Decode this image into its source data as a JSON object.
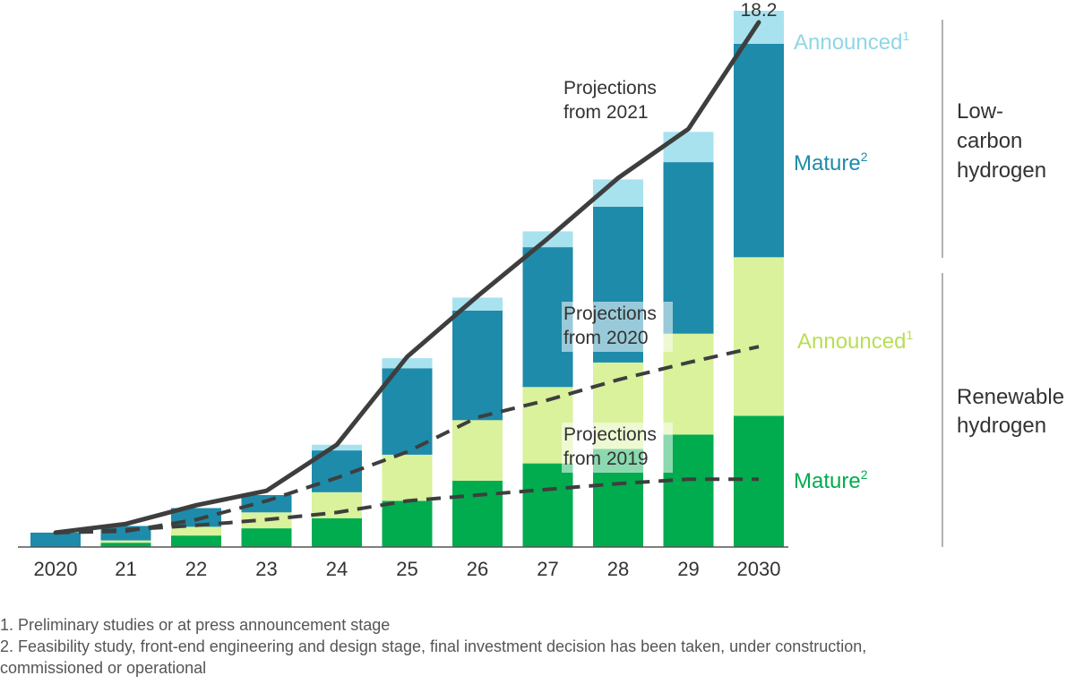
{
  "chart_data": {
    "type": "bar",
    "stacked": true,
    "title": "",
    "xlabel": "",
    "ylabel": "",
    "categories": [
      "2020",
      "21",
      "22",
      "23",
      "24",
      "25",
      "26",
      "27",
      "28",
      "29",
      "2030"
    ],
    "ylim": [
      0,
      18.6
    ],
    "series": [
      {
        "group": "Renewable hydrogen",
        "name": "Mature",
        "footnote": "2",
        "color": "#00AC4E",
        "values": [
          0.0,
          0.15,
          0.4,
          0.65,
          1.0,
          1.6,
          2.3,
          2.9,
          3.4,
          3.9,
          4.55
        ]
      },
      {
        "group": "Renewable hydrogen",
        "name": "Announced",
        "footnote": "1",
        "color": "#D9F29B",
        "values": [
          0.0,
          0.08,
          0.3,
          0.55,
          0.9,
          1.6,
          2.1,
          2.65,
          3.0,
          3.5,
          5.5
        ]
      },
      {
        "group": "Low-carbon hydrogen",
        "name": "Mature",
        "footnote": "2",
        "color": "#1E8BAA",
        "values": [
          0.5,
          0.5,
          0.65,
          0.6,
          1.45,
          3.0,
          3.8,
          4.85,
          5.4,
          5.95,
          7.4
        ]
      },
      {
        "group": "Low-carbon hydrogen",
        "name": "Announced",
        "footnote": "1",
        "color": "#A8E2EE",
        "values": [
          0.0,
          0.0,
          0.0,
          0.0,
          0.2,
          0.35,
          0.45,
          0.55,
          0.95,
          1.05,
          1.15
        ]
      }
    ],
    "projections": [
      {
        "label_line1": "Projections",
        "label_line2": "from 2021",
        "style": "solid",
        "values": [
          0.5,
          0.8,
          1.45,
          1.95,
          3.55,
          6.6,
          8.7,
          10.7,
          12.8,
          14.5,
          18.2
        ]
      },
      {
        "label_line1": "Projections",
        "label_line2": "from 2020",
        "style": "dashed",
        "values": [
          0.5,
          0.55,
          0.95,
          1.6,
          2.4,
          3.3,
          4.5,
          5.1,
          5.8,
          6.4,
          6.95
        ]
      },
      {
        "label_line1": "Projections",
        "label_line2": "from 2019",
        "style": "dashed",
        "values": [
          0.5,
          0.6,
          0.75,
          0.95,
          1.2,
          1.6,
          1.8,
          2.0,
          2.2,
          2.35,
          2.35
        ]
      }
    ],
    "peak_label": "18.2",
    "segment_labels": {
      "low_announced": "Announced",
      "low_mature": "Mature",
      "ren_announced": "Announced",
      "ren_mature": "Mature",
      "sup1": "1",
      "sup2": "2"
    },
    "group_labels": {
      "low_carbon": [
        "Low-",
        "carbon",
        "hydrogen"
      ],
      "renewable": [
        "Renewable",
        "hydrogen"
      ]
    },
    "colors": {
      "renewable_mature": "#00AC4E",
      "renewable_announced": "#D9F29B",
      "low_carbon_mature": "#1E8BAA",
      "low_carbon_announced": "#A8E2EE",
      "line": "#3E3E3E",
      "label_low": "#1E8BAA",
      "label_low_announced": "#8FD6E6",
      "label_ren_announced": "#B9DE55",
      "label_ren_mature": "#00AC4E"
    }
  },
  "footnotes": {
    "note1": "1. Preliminary studies or at press announcement stage",
    "note2_line1": "2. Feasibility study, front-end engineering and design stage, final investment decision has been taken, under construction,",
    "note2_line2": "commissioned or operational"
  }
}
